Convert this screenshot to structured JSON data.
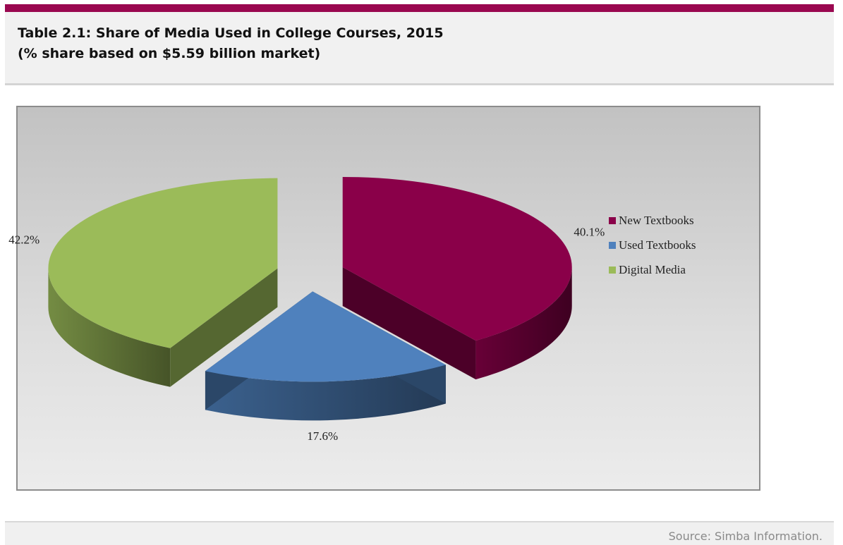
{
  "header": {
    "title_line1": "Table 2.1: Share of Media Used in College Courses, 2015",
    "title_line2": "(% share based on $5.59 billion market)",
    "accent_color": "#9a0850"
  },
  "chart_data": {
    "type": "pie",
    "style": "3d-exploded",
    "categories": [
      "New Textbooks",
      "Used Textbooks",
      "Digital Media"
    ],
    "values": [
      40.1,
      17.6,
      42.2
    ],
    "data_labels": [
      "40.1%",
      "17.6%",
      "42.2%"
    ],
    "colors": [
      "#8a0049",
      "#4f81bd",
      "#9bbb59"
    ],
    "legend": {
      "placement": "right",
      "entries": [
        "New Textbooks",
        "Used Textbooks",
        "Digital Media"
      ]
    }
  },
  "footer": {
    "source": "Source: Simba Information."
  }
}
